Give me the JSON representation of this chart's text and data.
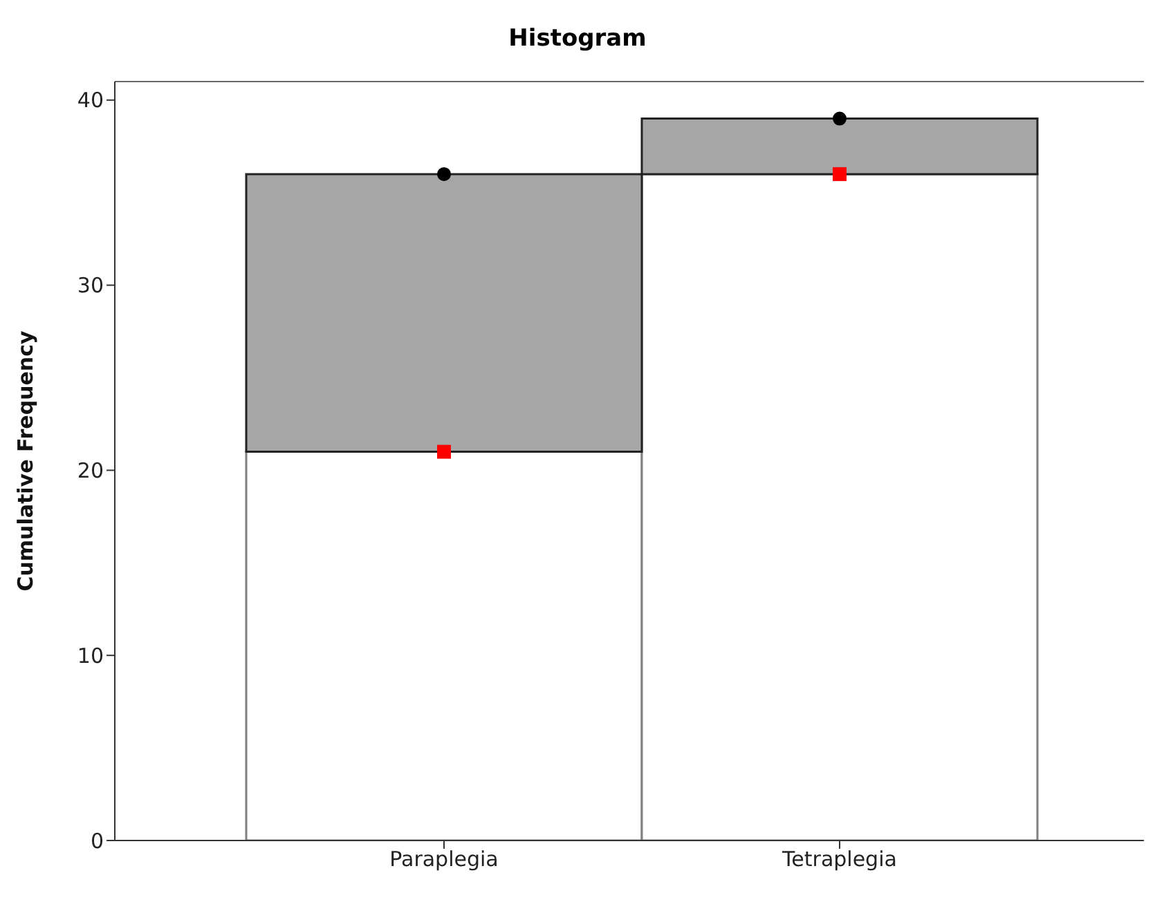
{
  "chart_data": {
    "type": "bar",
    "title": "Histogram",
    "ylabel": "Cumulative Frequency",
    "categories": [
      "Paraplegia",
      "Tetraplegia"
    ],
    "stacked": true,
    "ylim": [
      0,
      41
    ],
    "yticks": [
      0,
      10,
      20,
      30,
      40
    ],
    "grid": false,
    "legend": false,
    "series": [
      {
        "color": "#ffffff",
        "values": [
          21,
          36
        ]
      },
      {
        "color": "#a6a6a6",
        "values": [
          15,
          3
        ]
      },
      {
        "type": "scatter",
        "marker": "circle",
        "color": "#000000",
        "x": [
          "Paraplegia",
          "Tetraplegia"
        ],
        "values": [
          36,
          39
        ]
      },
      {
        "type": "scatter",
        "marker": "square",
        "color": "#ff0000",
        "x": [
          "Paraplegia",
          "Tetraplegia"
        ],
        "values": [
          21,
          36
        ]
      }
    ]
  }
}
